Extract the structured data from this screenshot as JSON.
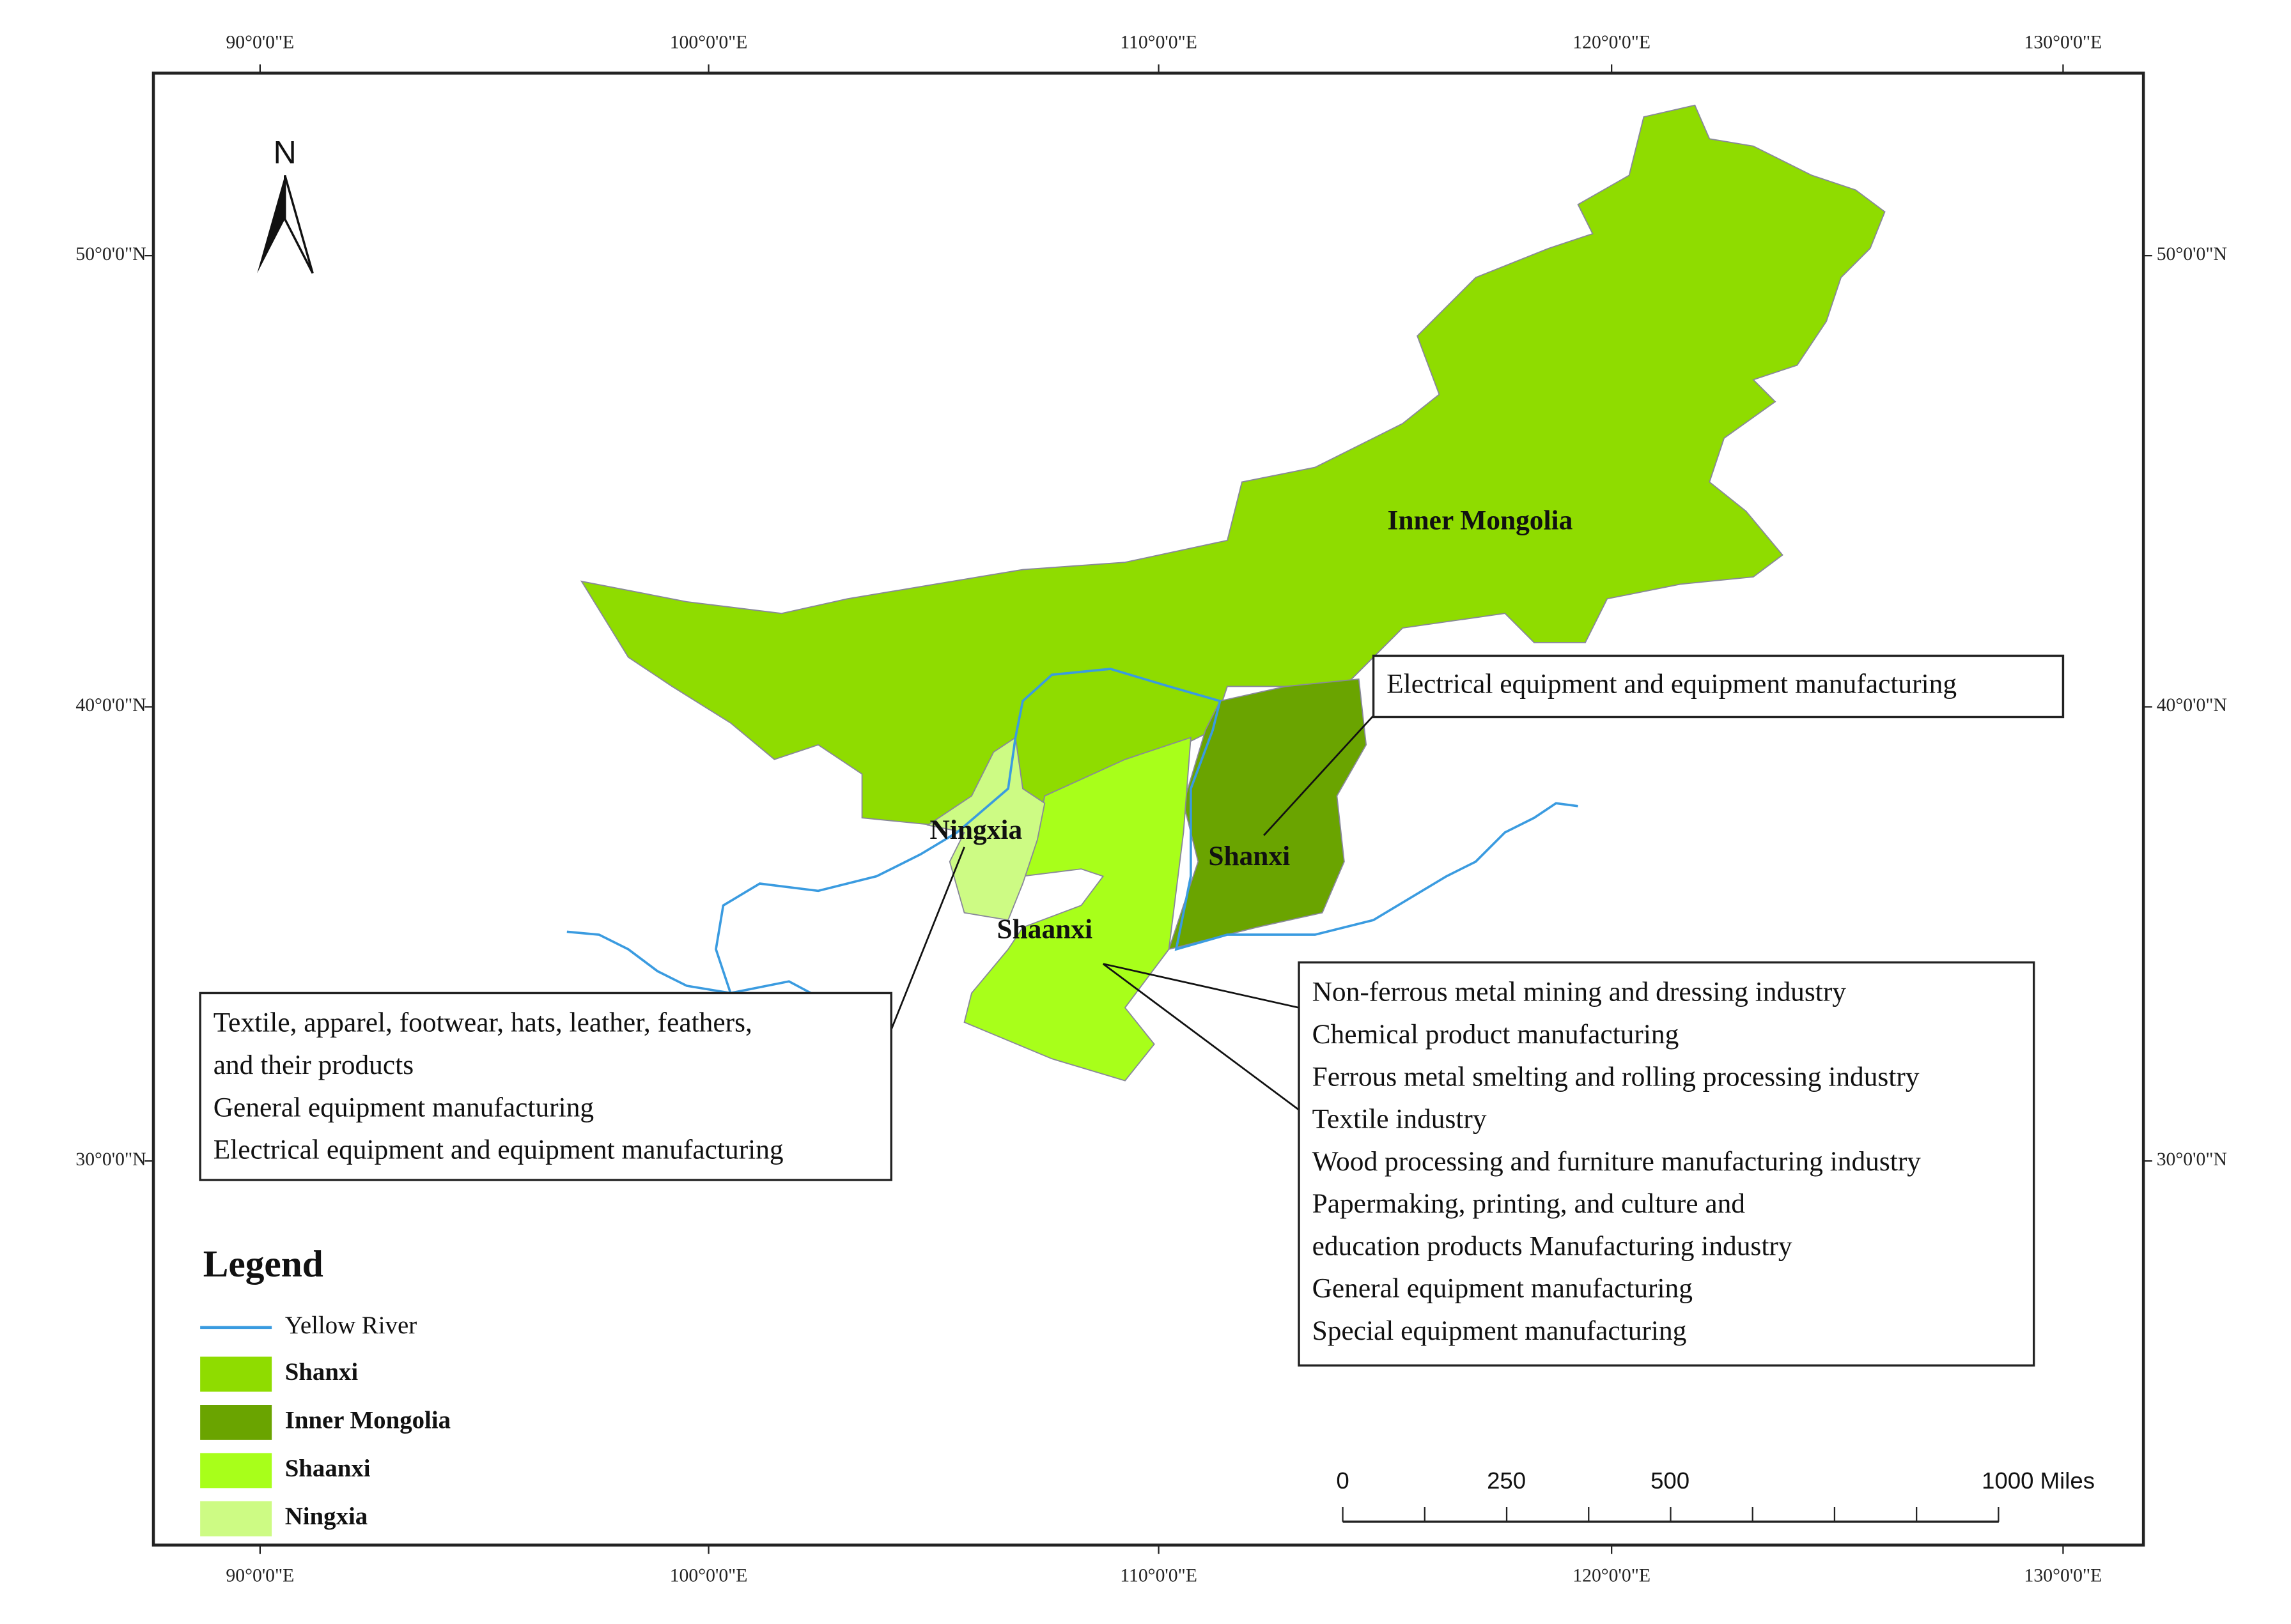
{
  "graticule": {
    "top": [
      "90°0'0\"E",
      "100°0'0\"E",
      "110°0'0\"E",
      "120°0'0\"E",
      "130°0'0\"E"
    ],
    "bottom": [
      "90°0'0\"E",
      "100°0'0\"E",
      "110°0'0\"E",
      "120°0'0\"E",
      "130°0'0\"E"
    ],
    "left": [
      "50°0'0\"N",
      "40°0'0\"N",
      "30°0'0\"N"
    ],
    "right": [
      "50°0'0\"N",
      "40°0'0\"N",
      "30°0'0\"N"
    ]
  },
  "north_arrow": "N",
  "regions": [
    {
      "label": "Inner Mongolia",
      "color": "#8fdc00"
    },
    {
      "label": "Shanxi",
      "color": "#6aa400"
    },
    {
      "label": "Shaanxi",
      "color": "#a8ff1a"
    },
    {
      "label": "Ningxia",
      "color": "#cdfb84"
    }
  ],
  "callouts": [
    {
      "lines": [
        "Electrical equipment and equipment manufacturing"
      ]
    },
    {
      "lines": [
        "Textile, apparel, footwear, hats, leather, feathers,",
        "and their products",
        "General equipment manufacturing",
        "Electrical equipment and equipment manufacturing"
      ]
    },
    {
      "lines": [
        "Non-ferrous metal mining and dressing industry",
        "Chemical product manufacturing",
        "Ferrous metal smelting and rolling processing industry",
        "Textile industry",
        "Wood processing and furniture manufacturing industry",
        "Papermaking, printing, and culture and",
        "education products Manufacturing industry",
        "General equipment manufacturing",
        "Special equipment manufacturing"
      ]
    }
  ],
  "legend": {
    "title": "Legend",
    "river": "Yellow River",
    "river_color": "#3a9be0",
    "items": [
      "Shanxi",
      "Inner Mongolia",
      "Shaanxi",
      "Ningxia"
    ]
  },
  "scale_bar": {
    "labels": [
      "0",
      "250",
      "500",
      "1000 Miles"
    ]
  }
}
